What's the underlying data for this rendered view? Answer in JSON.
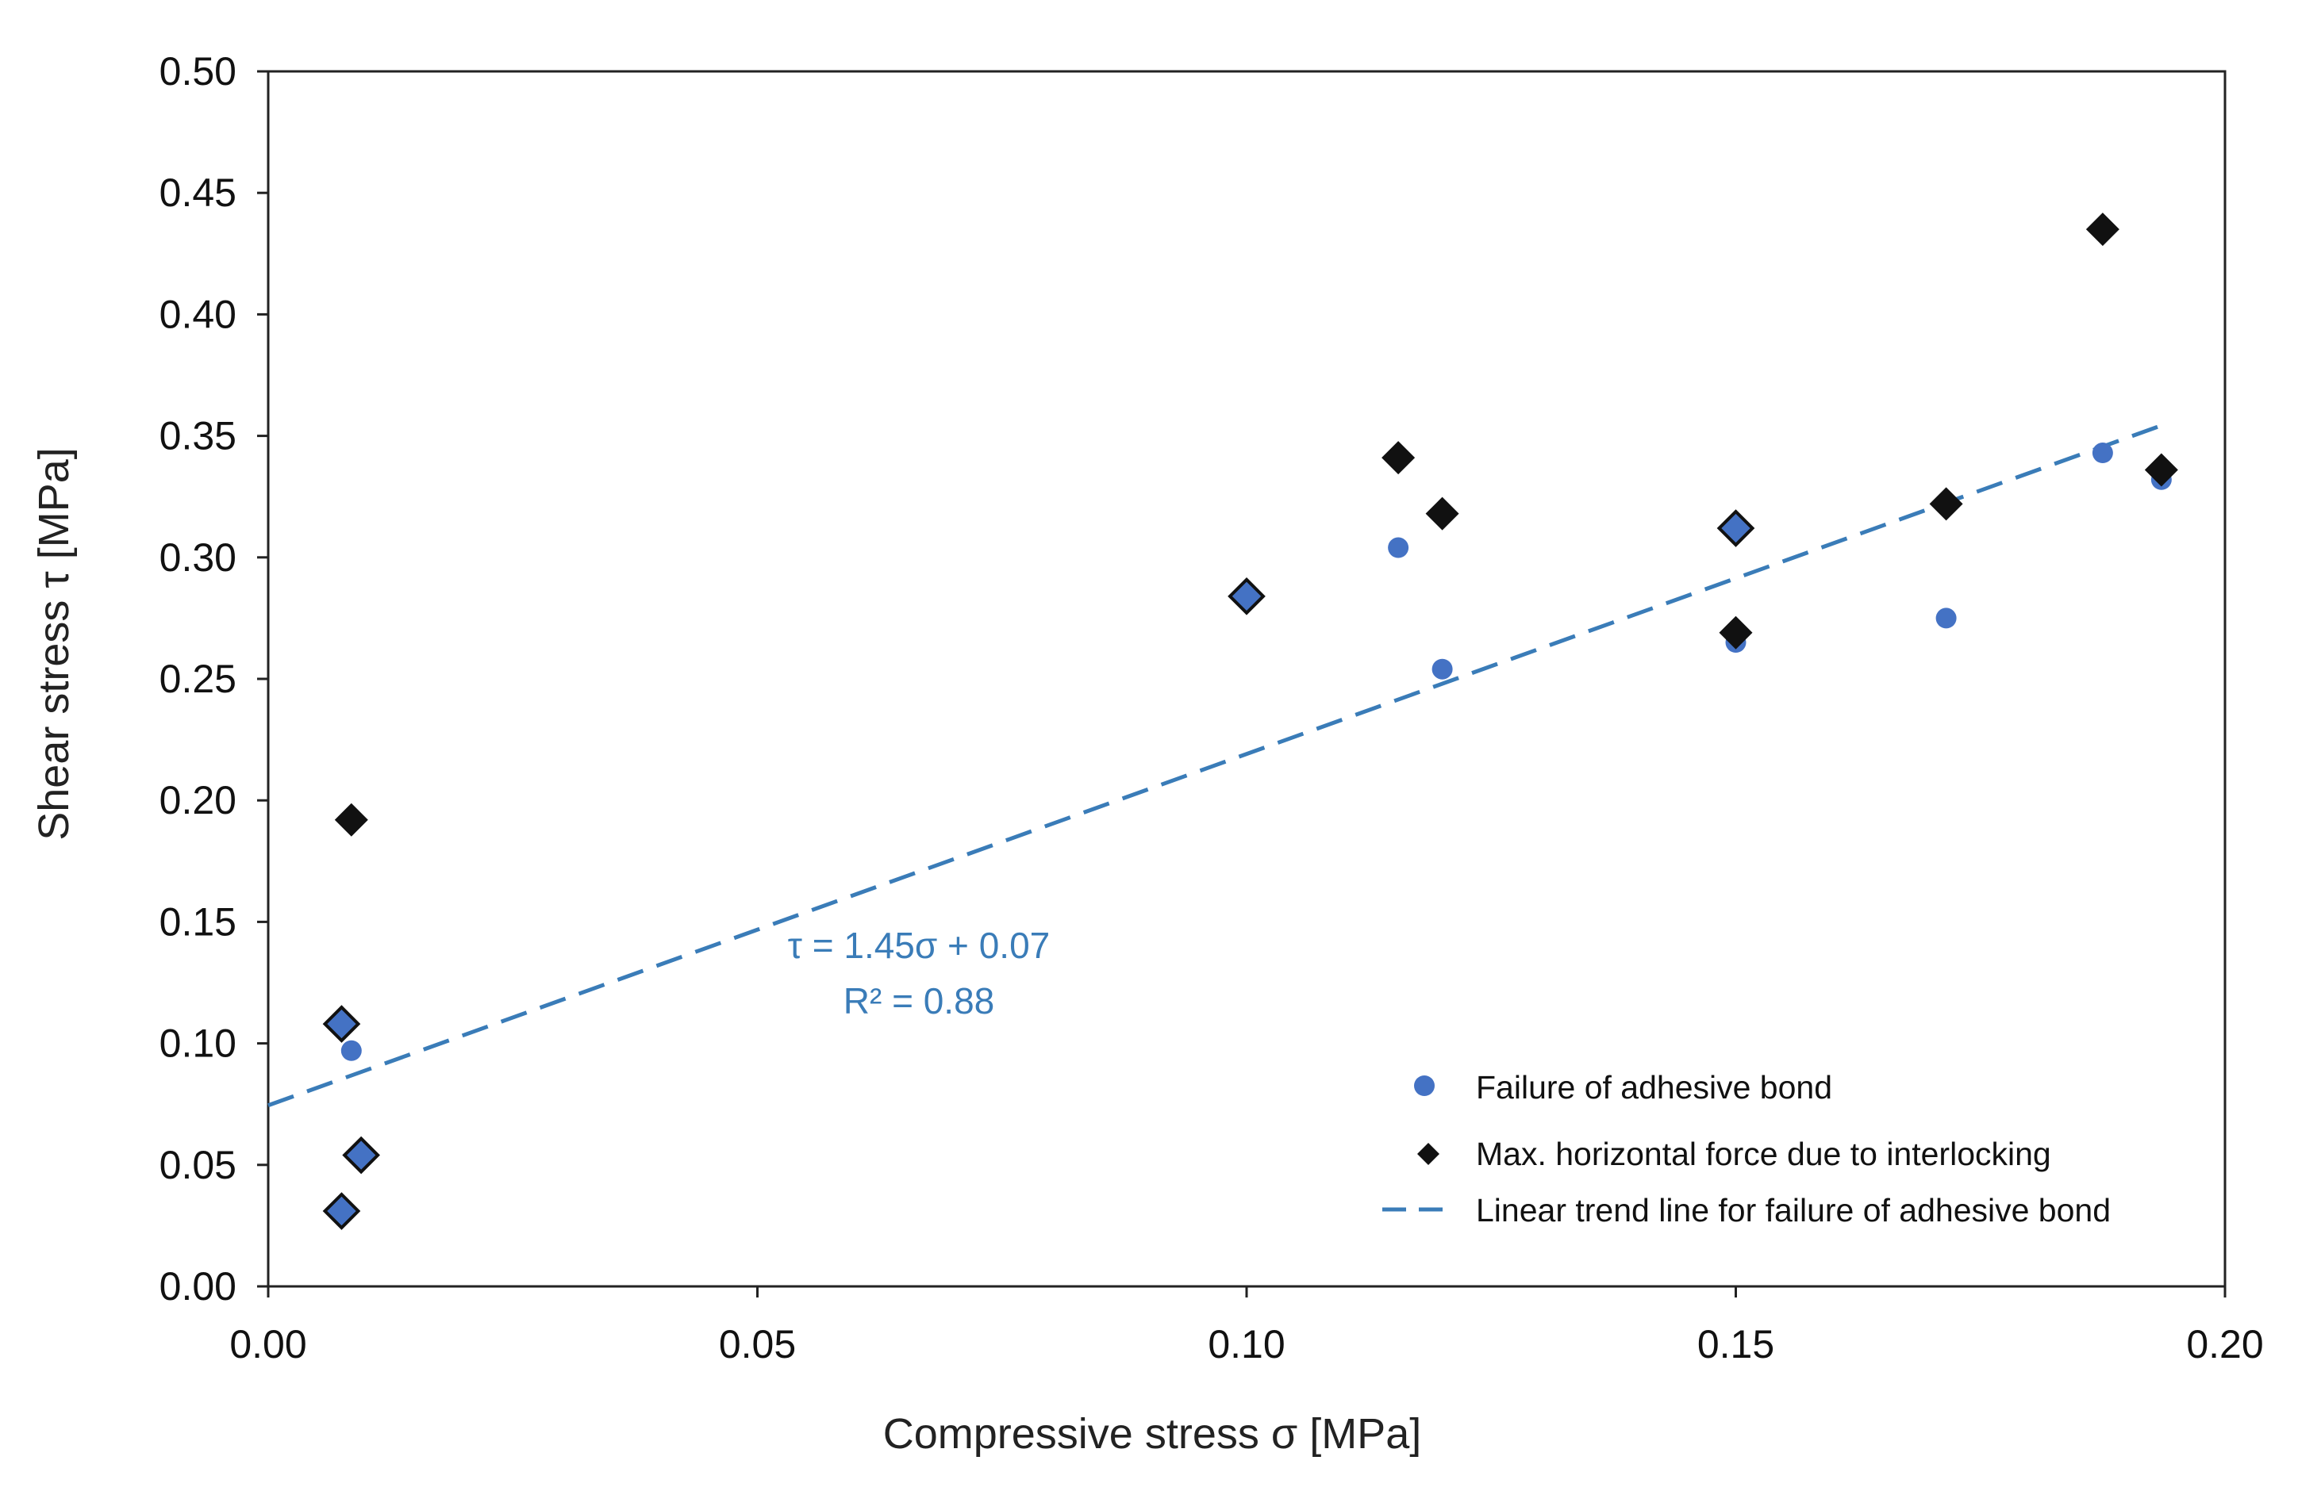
{
  "chart_data": {
    "type": "scatter",
    "title": "",
    "xlabel": "Compressive stress σ [MPa]",
    "ylabel": "Shear stress τ  [MPa]",
    "xlim": [
      0,
      0.2
    ],
    "ylim": [
      0,
      0.5
    ],
    "x_ticks": [
      "0.00",
      "0.05",
      "0.10",
      "0.15",
      "0.20"
    ],
    "y_ticks": [
      "0.00",
      "0.05",
      "0.10",
      "0.15",
      "0.20",
      "0.25",
      "0.30",
      "0.35",
      "0.40",
      "0.45",
      "0.50"
    ],
    "grid": false,
    "legend_position": "bottom-right",
    "series": [
      {
        "name": "Failure of adhesive bond",
        "marker": "circle",
        "color": "#4472C4",
        "points": [
          {
            "x": 0.0075,
            "y": 0.031
          },
          {
            "x": 0.0075,
            "y": 0.108
          },
          {
            "x": 0.0085,
            "y": 0.097
          },
          {
            "x": 0.0095,
            "y": 0.054
          },
          {
            "x": 0.1,
            "y": 0.284
          },
          {
            "x": 0.1155,
            "y": 0.304
          },
          {
            "x": 0.12,
            "y": 0.254
          },
          {
            "x": 0.15,
            "y": 0.312
          },
          {
            "x": 0.15,
            "y": 0.265
          },
          {
            "x": 0.1715,
            "y": 0.275
          },
          {
            "x": 0.1875,
            "y": 0.343
          },
          {
            "x": 0.1935,
            "y": 0.332
          }
        ]
      },
      {
        "name": "Max. horizontal force due to interlocking",
        "marker": "diamond",
        "color": "#111111",
        "points": [
          {
            "x": 0.0075,
            "y": 0.031
          },
          {
            "x": 0.0075,
            "y": 0.108
          },
          {
            "x": 0.0085,
            "y": 0.192
          },
          {
            "x": 0.0095,
            "y": 0.054
          },
          {
            "x": 0.1,
            "y": 0.284
          },
          {
            "x": 0.1155,
            "y": 0.341
          },
          {
            "x": 0.12,
            "y": 0.318
          },
          {
            "x": 0.15,
            "y": 0.312
          },
          {
            "x": 0.15,
            "y": 0.269
          },
          {
            "x": 0.1715,
            "y": 0.322
          },
          {
            "x": 0.1875,
            "y": 0.435
          },
          {
            "x": 0.1935,
            "y": 0.336
          }
        ]
      },
      {
        "name": "Linear trend line for failure of adhesive bond",
        "type": "line",
        "style": "dashed",
        "color": "#3A7CB8",
        "x": [
          0,
          0.194
        ],
        "y": [
          0.0745,
          0.355
        ]
      }
    ],
    "annotations": {
      "equation": "τ = 1.45σ + 0.07",
      "r_squared": "R² = 0.88"
    }
  }
}
